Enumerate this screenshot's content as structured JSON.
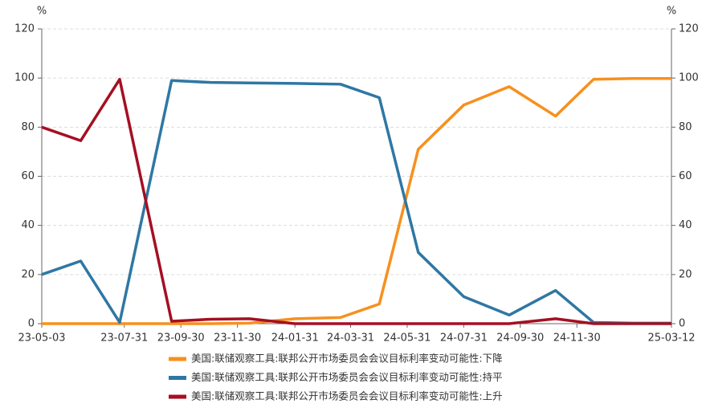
{
  "chart_data": {
    "type": "line",
    "y_unit": "%",
    "y2_unit": "%",
    "x": [
      "23-05-03",
      "23-06-14",
      "23-07-26",
      "23-09-20",
      "23-11-01",
      "23-12-13",
      "24-01-31",
      "24-03-20",
      "24-05-01",
      "24-06-12",
      "24-07-31",
      "24-09-18",
      "24-11-07",
      "24-12-18",
      "25-01-29",
      "25-03-12"
    ],
    "xlim": [
      "23-05-03",
      "25-03-12"
    ],
    "xticks": [
      "23-05-03",
      "23-07-31",
      "23-09-30",
      "23-11-30",
      "24-01-31",
      "24-03-31",
      "24-05-31",
      "24-07-31",
      "24-09-30",
      "24-11-30",
      "25-03-12"
    ],
    "ylim": [
      0,
      120
    ],
    "yticks": [
      0,
      20,
      40,
      60,
      80,
      100,
      120
    ],
    "y2lim": [
      0,
      120
    ],
    "y2ticks": [
      0,
      20,
      40,
      60,
      80,
      100,
      120
    ],
    "grid": true,
    "series": [
      {
        "name": "美国:联储观察工具:联邦公开市场委员会会议目标利率变动可能性:下降",
        "color": "#f7901e",
        "values": [
          0,
          0,
          0,
          0,
          0,
          0.2,
          2,
          2.5,
          8,
          71,
          89,
          96.5,
          84.5,
          99.5,
          99.8,
          99.8
        ]
      },
      {
        "name": "美国:联储观察工具:联邦公开市场委员会会议目标利率变动可能性:持平",
        "color": "#2f77a3",
        "values": [
          20,
          25.5,
          0.5,
          99,
          98.2,
          98,
          97.8,
          97.5,
          92,
          29,
          11,
          3.5,
          13.5,
          0.5,
          0.2,
          0.2
        ]
      },
      {
        "name": "美国:联储观察工具:联邦公开市场委员会会议目标利率变动可能性:上升",
        "color": "#a50f22",
        "values": [
          80,
          74.5,
          99.5,
          1,
          1.8,
          2,
          0,
          0,
          0,
          0,
          0,
          0,
          2,
          0,
          0,
          0
        ]
      }
    ]
  }
}
